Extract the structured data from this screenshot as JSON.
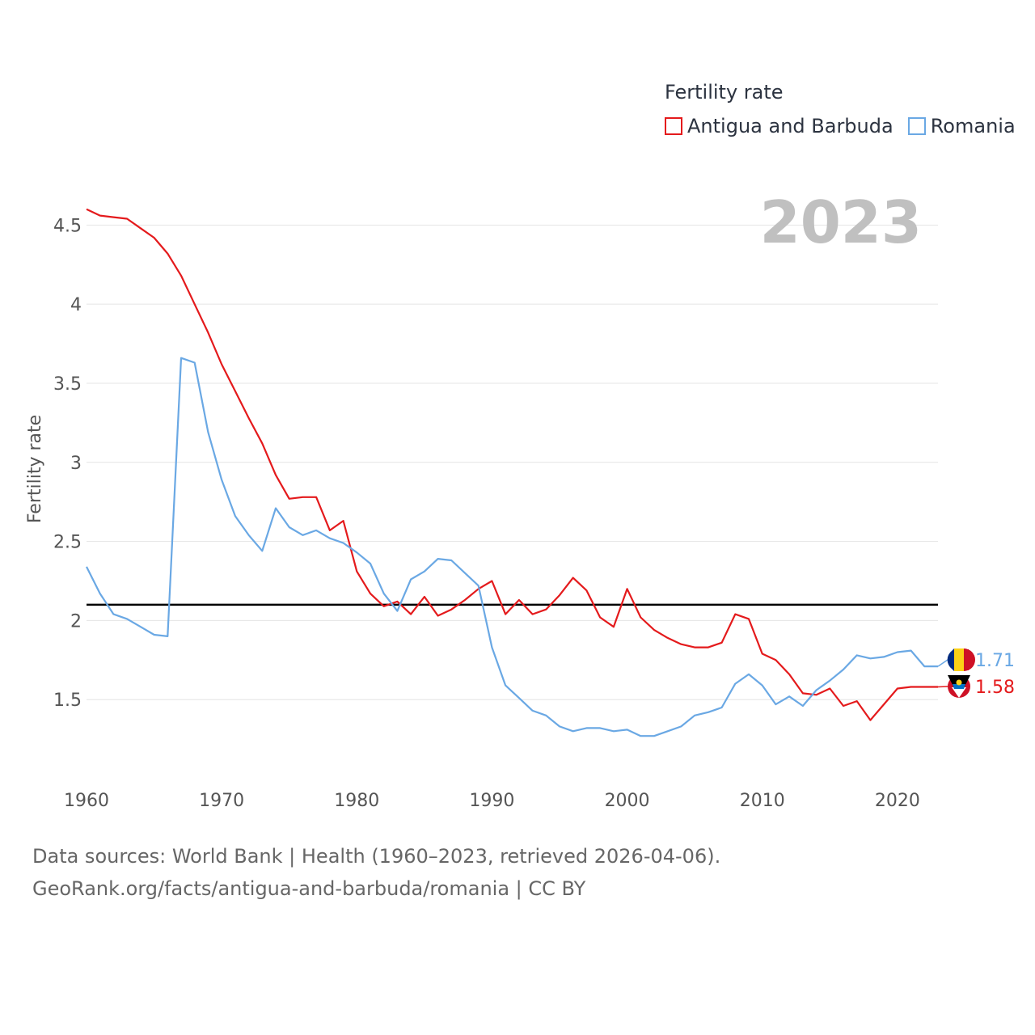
{
  "legend": {
    "title": "Fertility rate",
    "items": [
      {
        "label": "Antigua and Barbuda",
        "color": "#e41a1c"
      },
      {
        "label": "Romania",
        "color": "#6aa8e4"
      }
    ]
  },
  "footer": {
    "line1": "Data sources: World Bank | Health (1960–2023, retrieved 2026-04-06).",
    "line2": "GeoRank.org/facts/antigua-and-barbuda/romania | CC BY"
  },
  "chart_data": {
    "type": "line",
    "title": "Fertility rate",
    "year_label": "2023",
    "xlabel": "",
    "ylabel": "Fertility rate",
    "xlim": [
      1960,
      2023
    ],
    "ylim": [
      1.0,
      4.65
    ],
    "yticks": [
      1.5,
      2,
      2.5,
      3,
      3.5,
      4,
      4.5
    ],
    "ytick_labels": [
      "1.5",
      "2",
      "2.5",
      "3",
      "3.5",
      "4",
      "4.5"
    ],
    "xticks": [
      1960,
      1970,
      1980,
      1990,
      2000,
      2010,
      2020
    ],
    "xtick_labels": [
      "1960",
      "1970",
      "1980",
      "1990",
      "2000",
      "2010",
      "2020"
    ],
    "reference_line": 2.1,
    "grid": true,
    "legend_position": "top-right",
    "x": [
      1960,
      1961,
      1962,
      1963,
      1964,
      1965,
      1966,
      1967,
      1968,
      1969,
      1970,
      1971,
      1972,
      1973,
      1974,
      1975,
      1976,
      1977,
      1978,
      1979,
      1980,
      1981,
      1982,
      1983,
      1984,
      1985,
      1986,
      1987,
      1988,
      1989,
      1990,
      1991,
      1992,
      1993,
      1994,
      1995,
      1996,
      1997,
      1998,
      1999,
      2000,
      2001,
      2002,
      2003,
      2004,
      2005,
      2006,
      2007,
      2008,
      2009,
      2010,
      2011,
      2012,
      2013,
      2014,
      2015,
      2016,
      2017,
      2018,
      2019,
      2020,
      2021,
      2022,
      2023
    ],
    "series": [
      {
        "name": "Antigua and Barbuda",
        "color": "#e41a1c",
        "end_label": "1.58",
        "values": [
          4.6,
          4.56,
          4.55,
          4.54,
          4.48,
          4.42,
          4.32,
          4.18,
          4.0,
          3.82,
          3.62,
          3.45,
          3.28,
          3.12,
          2.92,
          2.77,
          2.78,
          2.78,
          2.57,
          2.63,
          2.31,
          2.17,
          2.09,
          2.12,
          2.04,
          2.15,
          2.03,
          2.07,
          2.13,
          2.2,
          2.25,
          2.04,
          2.13,
          2.04,
          2.07,
          2.16,
          2.27,
          2.19,
          2.02,
          1.96,
          2.2,
          2.02,
          1.94,
          1.89,
          1.85,
          1.83,
          1.83,
          1.86,
          2.04,
          2.01,
          1.79,
          1.75,
          1.66,
          1.54,
          1.53,
          1.57,
          1.46,
          1.49,
          1.37,
          1.47,
          1.57,
          1.58,
          1.58,
          1.58
        ]
      },
      {
        "name": "Romania",
        "color": "#6aa8e4",
        "end_label": "1.71",
        "values": [
          2.34,
          2.17,
          2.04,
          2.01,
          1.96,
          1.91,
          1.9,
          3.66,
          3.63,
          3.19,
          2.89,
          2.66,
          2.54,
          2.44,
          2.71,
          2.59,
          2.54,
          2.57,
          2.52,
          2.49,
          2.43,
          2.36,
          2.17,
          2.06,
          2.26,
          2.31,
          2.39,
          2.38,
          2.3,
          2.22,
          1.83,
          1.59,
          1.51,
          1.43,
          1.4,
          1.33,
          1.3,
          1.32,
          1.32,
          1.3,
          1.31,
          1.27,
          1.27,
          1.3,
          1.33,
          1.4,
          1.42,
          1.45,
          1.6,
          1.66,
          1.59,
          1.47,
          1.52,
          1.46,
          1.56,
          1.62,
          1.69,
          1.78,
          1.76,
          1.77,
          1.8,
          1.81,
          1.71,
          1.71
        ]
      }
    ]
  }
}
